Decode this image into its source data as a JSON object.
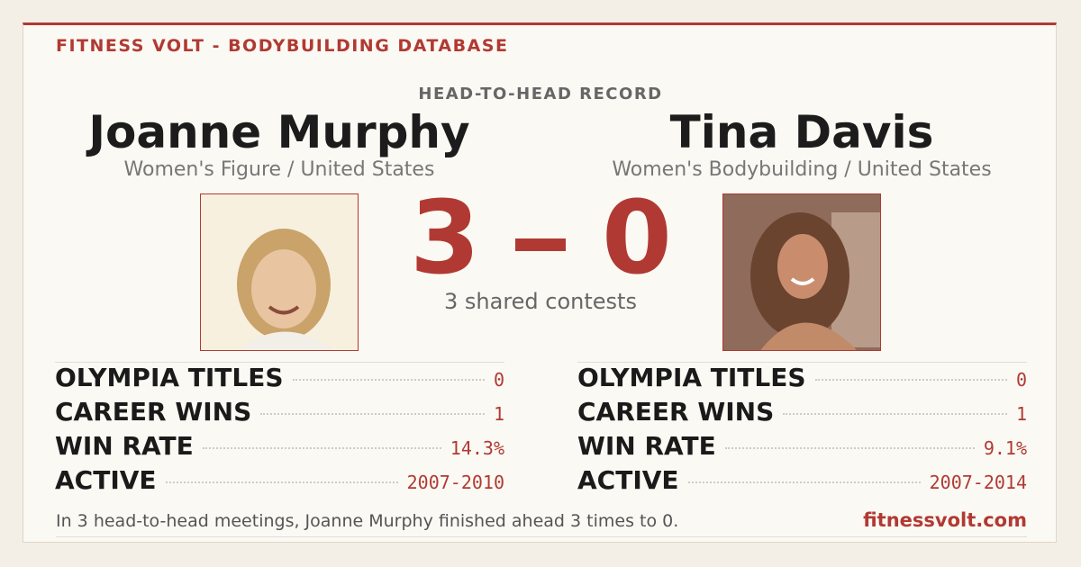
{
  "header": {
    "brand": "FITNESS VOLT - BODYBUILDING DATABASE",
    "heading": "HEAD-TO-HEAD RECORD"
  },
  "left": {
    "name": "Joanne Murphy",
    "subtitle": "Women's Figure / United States",
    "stats": [
      {
        "label": "OLYMPIA TITLES",
        "value": "0"
      },
      {
        "label": "CAREER WINS",
        "value": "1"
      },
      {
        "label": "WIN RATE",
        "value": "14.3%"
      },
      {
        "label": "ACTIVE",
        "value": "2007-2010"
      }
    ]
  },
  "right": {
    "name": "Tina Davis",
    "subtitle": "Women's Bodybuilding / United States",
    "stats": [
      {
        "label": "OLYMPIA TITLES",
        "value": "0"
      },
      {
        "label": "CAREER WINS",
        "value": "1"
      },
      {
        "label": "WIN RATE",
        "value": "9.1%"
      },
      {
        "label": "ACTIVE",
        "value": "2007-2014"
      }
    ]
  },
  "score": {
    "left": 3,
    "right": 0,
    "caption": "3 shared contests"
  },
  "footer": {
    "summary": "In 3 head-to-head meetings, Joanne Murphy finished ahead 3 times to 0.",
    "site": "fitnessvolt.com"
  }
}
